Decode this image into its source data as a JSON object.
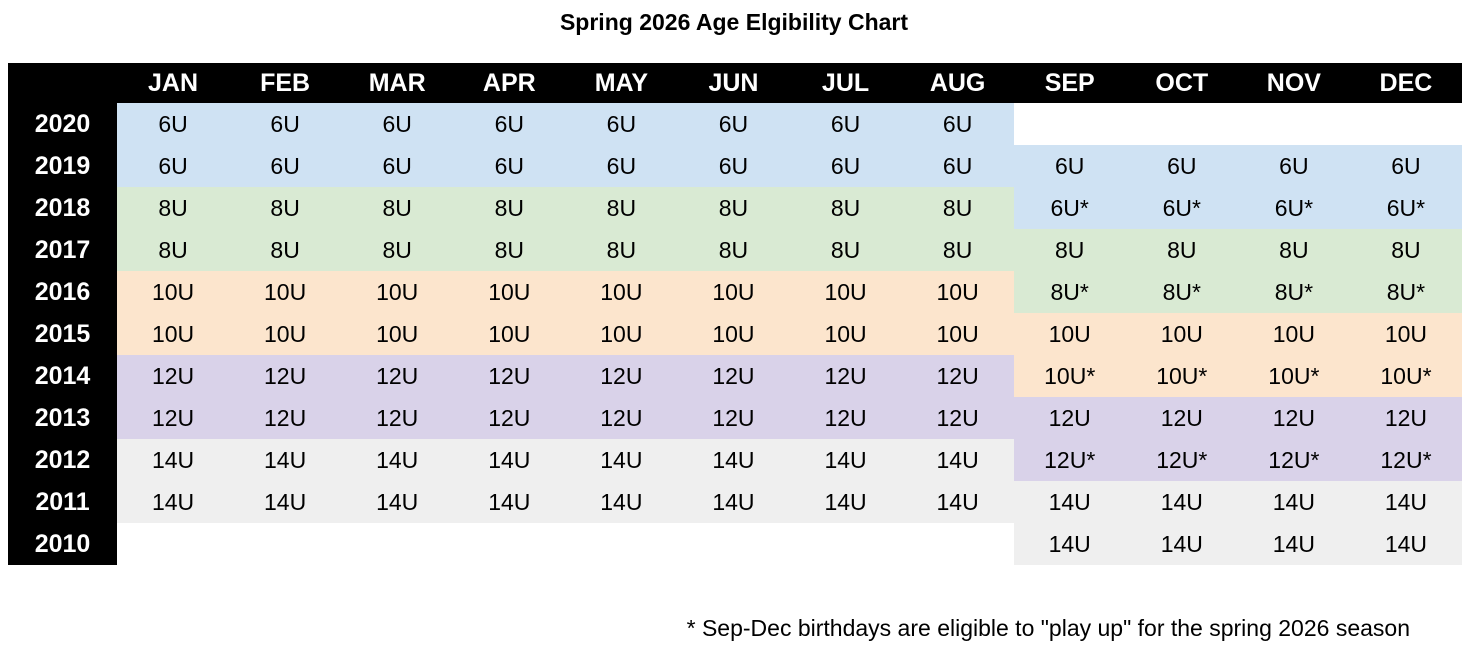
{
  "colors": {
    "table_header_bg": "#000000",
    "table_header_text": "#ffffff",
    "groups": {
      "6U": "#cfe2f3",
      "8U": "#d9ead3",
      "10U": "#fce5cd",
      "12U": "#d9d2e9",
      "14U": "#efefef"
    }
  },
  "chart_data": {
    "type": "table",
    "title": "Spring 2026 Age Elgibility Chart",
    "columns": [
      "JAN",
      "FEB",
      "MAR",
      "APR",
      "MAY",
      "JUN",
      "JUL",
      "AUG",
      "SEP",
      "OCT",
      "NOV",
      "DEC"
    ],
    "row_labels": [
      "2020",
      "2019",
      "2018",
      "2017",
      "2016",
      "2015",
      "2014",
      "2013",
      "2012",
      "2011",
      "2010"
    ],
    "rows": [
      {
        "year": "2020",
        "cells": [
          "6U",
          "6U",
          "6U",
          "6U",
          "6U",
          "6U",
          "6U",
          "6U",
          "",
          "",
          "",
          ""
        ]
      },
      {
        "year": "2019",
        "cells": [
          "6U",
          "6U",
          "6U",
          "6U",
          "6U",
          "6U",
          "6U",
          "6U",
          "6U",
          "6U",
          "6U",
          "6U"
        ]
      },
      {
        "year": "2018",
        "cells": [
          "8U",
          "8U",
          "8U",
          "8U",
          "8U",
          "8U",
          "8U",
          "8U",
          "6U*",
          "6U*",
          "6U*",
          "6U*"
        ]
      },
      {
        "year": "2017",
        "cells": [
          "8U",
          "8U",
          "8U",
          "8U",
          "8U",
          "8U",
          "8U",
          "8U",
          "8U",
          "8U",
          "8U",
          "8U"
        ]
      },
      {
        "year": "2016",
        "cells": [
          "10U",
          "10U",
          "10U",
          "10U",
          "10U",
          "10U",
          "10U",
          "10U",
          "8U*",
          "8U*",
          "8U*",
          "8U*"
        ]
      },
      {
        "year": "2015",
        "cells": [
          "10U",
          "10U",
          "10U",
          "10U",
          "10U",
          "10U",
          "10U",
          "10U",
          "10U",
          "10U",
          "10U",
          "10U"
        ]
      },
      {
        "year": "2014",
        "cells": [
          "12U",
          "12U",
          "12U",
          "12U",
          "12U",
          "12U",
          "12U",
          "12U",
          "10U*",
          "10U*",
          "10U*",
          "10U*"
        ]
      },
      {
        "year": "2013",
        "cells": [
          "12U",
          "12U",
          "12U",
          "12U",
          "12U",
          "12U",
          "12U",
          "12U",
          "12U",
          "12U",
          "12U",
          "12U"
        ]
      },
      {
        "year": "2012",
        "cells": [
          "14U",
          "14U",
          "14U",
          "14U",
          "14U",
          "14U",
          "14U",
          "14U",
          "12U*",
          "12U*",
          "12U*",
          "12U*"
        ]
      },
      {
        "year": "2011",
        "cells": [
          "14U",
          "14U",
          "14U",
          "14U",
          "14U",
          "14U",
          "14U",
          "14U",
          "14U",
          "14U",
          "14U",
          "14U"
        ]
      },
      {
        "year": "2010",
        "cells": [
          "",
          "",
          "",
          "",
          "",
          "",
          "",
          "",
          "14U",
          "14U",
          "14U",
          "14U"
        ]
      }
    ],
    "footnote": "* Sep-Dec birthdays are eligible to \"play up\" for the spring 2026 season"
  }
}
